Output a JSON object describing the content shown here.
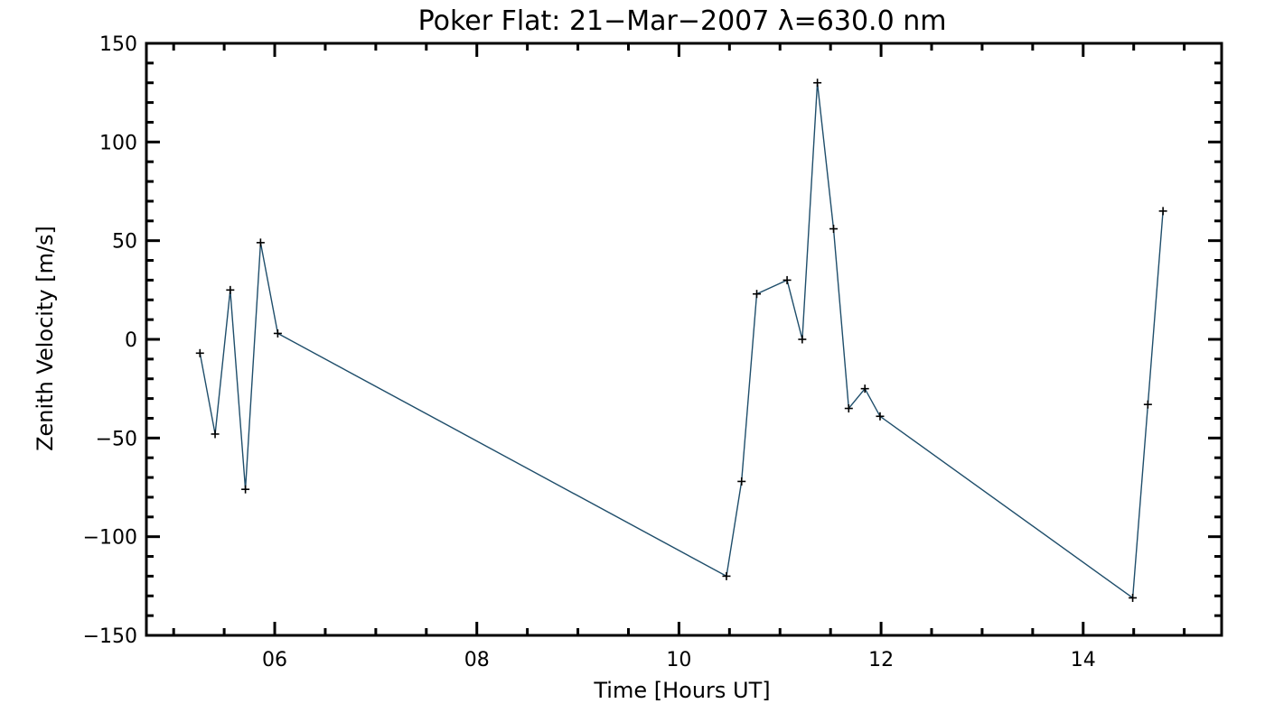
{
  "chart_data": {
    "type": "line",
    "title": "Poker Flat: 21−Mar−2007 λ=630.0 nm",
    "xlabel": "Time [Hours UT]",
    "ylabel": "Zenith Velocity [m/s]",
    "xlim": [
      4.73,
      15.37
    ],
    "ylim": [
      -150,
      150
    ],
    "xticks": [
      {
        "value": 6,
        "label": "06"
      },
      {
        "value": 8,
        "label": "08"
      },
      {
        "value": 10,
        "label": "10"
      },
      {
        "value": 12,
        "label": "12"
      },
      {
        "value": 14,
        "label": "14"
      }
    ],
    "yticks": [
      {
        "value": 150,
        "label": "150"
      },
      {
        "value": 100,
        "label": "100"
      },
      {
        "value": 50,
        "label": "50"
      },
      {
        "value": 0,
        "label": "0"
      },
      {
        "value": -50,
        "label": "−50"
      },
      {
        "value": -100,
        "label": "−100"
      },
      {
        "value": -150,
        "label": "−150"
      }
    ],
    "grid": false,
    "marker": "plus",
    "line_color": "#1f4e6b",
    "series": [
      {
        "x": [
          5.26,
          5.41,
          5.56,
          5.71,
          5.86,
          6.03,
          10.47,
          10.62,
          10.77,
          11.07,
          11.22,
          11.37,
          11.53,
          11.68,
          11.84,
          11.99,
          14.49,
          14.64,
          14.79
        ],
        "y": [
          -7,
          -48,
          25,
          -76,
          49,
          3,
          -120,
          -72,
          23,
          30,
          0,
          130,
          56,
          -35,
          -25,
          -39,
          -131,
          -33,
          65
        ]
      }
    ]
  }
}
